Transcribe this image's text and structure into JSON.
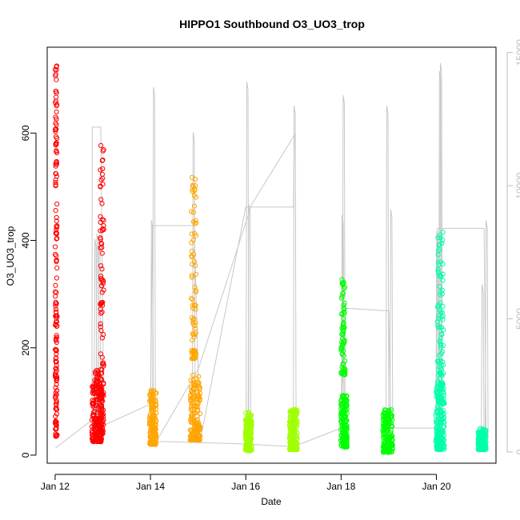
{
  "chart_data": {
    "type": "scatter",
    "title": "HIPPO1 Southbound O3_UO3_trop",
    "xlabel": "Date",
    "ylabel": "O3_UO3_trop",
    "xlim": [
      "2009-01-11T20:00",
      "2009-01-21T06:00"
    ],
    "ylim": [
      -15,
      760
    ],
    "y2lim": [
      -420,
      15200
    ],
    "x_ticks": [
      {
        "value": "2009-01-12",
        "label": "Jan 12"
      },
      {
        "value": "2009-01-14",
        "label": "Jan 14"
      },
      {
        "value": "2009-01-16",
        "label": "Jan 16"
      },
      {
        "value": "2009-01-18",
        "label": "Jan 18"
      },
      {
        "value": "2009-01-20",
        "label": "Jan 20"
      }
    ],
    "y_ticks": [
      0,
      200,
      400,
      600
    ],
    "y2_ticks": [
      0,
      5000,
      10000,
      15000
    ],
    "grid": false,
    "legend": "none",
    "colors": {
      "flight1": "#ff0000",
      "flight2": "#ffa500",
      "flight3": "#a0ff00",
      "flight4": "#00ff00",
      "flight5": "#00ffaa",
      "altitude_line": "#c8c8c8",
      "axis": "#000000",
      "right_axis": "#bebebe"
    },
    "series": [
      {
        "color": "#ff0000",
        "clusters": [
          {
            "start": "2009-01-12T00:00",
            "end": "2009-01-12T01:00",
            "lo": 35,
            "hi": 728,
            "n": 160
          },
          {
            "start": "2009-01-12T18:30",
            "end": "2009-01-12T23:30",
            "lo": 25,
            "hi": 160,
            "n": 200
          },
          {
            "start": "2009-01-12T22:40",
            "end": "2009-01-13T00:30",
            "lo": 40,
            "hi": 605,
            "n": 110
          }
        ]
      },
      {
        "color": "#ffa500",
        "clusters": [
          {
            "start": "2009-01-13T23:30",
            "end": "2009-01-14T03:00",
            "lo": 20,
            "hi": 125,
            "n": 140
          },
          {
            "start": "2009-01-14T20:00",
            "end": "2009-01-15T01:00",
            "lo": 28,
            "hi": 150,
            "n": 170
          },
          {
            "start": "2009-01-14T20:30",
            "end": "2009-01-14T23:00",
            "lo": 180,
            "hi": 520,
            "n": 80
          }
        ]
      },
      {
        "color": "#a0ff00",
        "clusters": [
          {
            "start": "2009-01-15T23:50",
            "end": "2009-01-16T03:00",
            "lo": 8,
            "hi": 80,
            "n": 170
          },
          {
            "start": "2009-01-16T22:00",
            "end": "2009-01-17T02:00",
            "lo": 10,
            "hi": 85,
            "n": 170
          }
        ]
      },
      {
        "color": "#00ff00",
        "clusters": [
          {
            "start": "2009-01-17T23:50",
            "end": "2009-01-18T03:00",
            "lo": 15,
            "hi": 115,
            "n": 160
          },
          {
            "start": "2009-01-18T00:00",
            "end": "2009-01-18T02:00",
            "lo": 150,
            "hi": 330,
            "n": 70
          },
          {
            "start": "2009-01-18T21:00",
            "end": "2009-01-19T02:00",
            "lo": 5,
            "hi": 85,
            "n": 160
          }
        ]
      },
      {
        "color": "#00ffaa",
        "clusters": [
          {
            "start": "2009-01-19T23:40",
            "end": "2009-01-20T04:00",
            "lo": 10,
            "hi": 130,
            "n": 180
          },
          {
            "start": "2009-01-20T00:30",
            "end": "2009-01-20T03:30",
            "lo": 130,
            "hi": 418,
            "n": 90
          },
          {
            "start": "2009-01-20T21:00",
            "end": "2009-01-21T01:00",
            "lo": 10,
            "hi": 50,
            "n": 150
          }
        ]
      }
    ],
    "altitude_trace": {
      "color": "#c8c8c8",
      "points": [
        [
          "2009-01-12T00:10",
          150
        ],
        [
          "2009-01-12T18:30",
          1200
        ],
        [
          "2009-01-12T18:40",
          12200
        ],
        [
          "2009-01-12T23:00",
          12200
        ],
        [
          "2009-01-13T00:30",
          1000
        ],
        [
          "2009-01-14T00:00",
          1800
        ],
        [
          "2009-01-14T01:00",
          8500
        ],
        [
          "2009-01-14T22:00",
          8500
        ],
        [
          "2009-01-15T01:00",
          400
        ],
        [
          "2009-01-16T00:00",
          9200
        ],
        [
          "2009-01-17T00:00",
          9200
        ],
        [
          "2009-01-17T00:30",
          11900
        ],
        [
          "2009-01-16T03:00",
          9300
        ],
        [
          "2009-01-15T00:00",
          3100
        ],
        [
          "2009-01-14T03:00",
          400
        ],
        [
          "2009-01-16T00:00",
          300
        ],
        [
          "2009-01-17T00:00",
          200
        ],
        [
          "2009-01-18T00:00",
          900
        ],
        [
          "2009-01-18T02:00",
          5400
        ],
        [
          "2009-01-19T00:00",
          5300
        ],
        [
          "2009-01-19T01:00",
          900
        ],
        [
          "2009-01-20T00:00",
          900
        ],
        [
          "2009-01-20T00:30",
          8400
        ],
        [
          "2009-01-21T00:00",
          8400
        ],
        [
          "2009-01-21T01:00",
          900
        ]
      ],
      "spikes": [
        [
          "2009-01-12T20:00",
          8000
        ],
        [
          "2009-01-12T21:00",
          8200
        ],
        [
          "2009-01-12T22:00",
          7800
        ],
        [
          "2009-01-14T00:30",
          8700
        ],
        [
          "2009-01-14T01:30",
          13700
        ],
        [
          "2009-01-14T21:30",
          12000
        ],
        [
          "2009-01-16T00:30",
          13900
        ],
        [
          "2009-01-16T01:30",
          9300
        ],
        [
          "2009-01-17T00:20",
          13000
        ],
        [
          "2009-01-18T00:30",
          8900
        ],
        [
          "2009-01-18T01:00",
          13400
        ],
        [
          "2009-01-18T23:00",
          13000
        ],
        [
          "2009-01-19T01:00",
          9100
        ],
        [
          "2009-01-20T00:10",
          8300
        ],
        [
          "2009-01-20T01:30",
          14300
        ],
        [
          "2009-01-20T02:00",
          14600
        ],
        [
          "2009-01-20T23:00",
          6300
        ],
        [
          "2009-01-21T01:00",
          8700
        ]
      ]
    }
  }
}
